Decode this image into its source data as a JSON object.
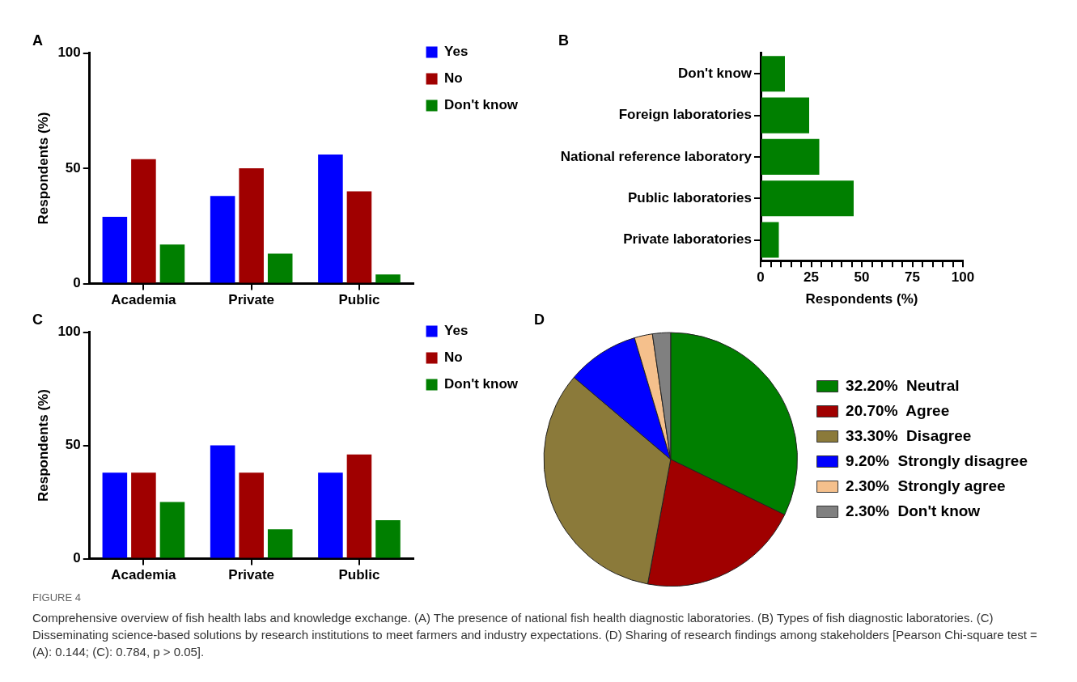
{
  "chart_data": [
    {
      "type": "bar",
      "title": "A",
      "ylabel": "Respondents (%)",
      "categories": [
        "Academia",
        "Private",
        "Public"
      ],
      "series": [
        {
          "name": "Yes",
          "color": "#0000ff",
          "values": [
            29,
            38,
            56
          ]
        },
        {
          "name": "No",
          "color": "#a00000",
          "values": [
            54,
            50,
            40
          ]
        },
        {
          "name": "Don't know",
          "color": "#007f00",
          "values": [
            17,
            13,
            4
          ]
        }
      ],
      "ylim": [
        0,
        100
      ],
      "yticks": [
        0,
        50,
        100
      ],
      "grid": false,
      "legend": "top right"
    },
    {
      "type": "bar",
      "title": "B",
      "orientation": "horizontal",
      "xlabel": "Respondents (%)",
      "categories": [
        "Don't know",
        "Foreign laboratories",
        "National reference laboratory",
        "Public laboratories",
        "Private laboratories"
      ],
      "values": [
        12,
        24,
        29,
        46,
        9
      ],
      "color": "#007f00",
      "xlim": [
        0,
        100
      ],
      "xticks": [
        0,
        {
          "value": 5,
          "label": null
        },
        {
          "value": 10,
          "label": null
        },
        {
          "value": 15,
          "label": null
        },
        {
          "value": 20,
          "label": null
        },
        25,
        {
          "value": 30,
          "label": null
        },
        {
          "value": 35,
          "label": null
        },
        {
          "value": 40,
          "label": null
        },
        {
          "value": 45,
          "label": null
        },
        50,
        {
          "value": 55,
          "label": null
        },
        {
          "value": 60,
          "label": null
        },
        {
          "value": 65,
          "label": null
        },
        {
          "value": 70,
          "label": null
        },
        75,
        {
          "value": 80,
          "label": null
        },
        {
          "value": 85,
          "label": null
        },
        {
          "value": 90,
          "label": null
        },
        {
          "value": 95,
          "label": null
        },
        100
      ],
      "grid": false,
      "legend": false
    },
    {
      "type": "bar",
      "title": "C",
      "ylabel": "Respondents (%)",
      "categories": [
        "Academia",
        "Private",
        "Public"
      ],
      "series": [
        {
          "name": "Yes",
          "color": "#0000ff",
          "values": [
            38,
            50,
            38
          ]
        },
        {
          "name": "No",
          "color": "#a00000",
          "values": [
            38,
            38,
            46
          ]
        },
        {
          "name": "Don't know",
          "color": "#007f00",
          "values": [
            25,
            13,
            17
          ]
        }
      ],
      "ylim": [
        0,
        100
      ],
      "yticks": [
        0,
        50,
        100
      ],
      "grid": false,
      "legend": "top right"
    },
    {
      "type": "pie",
      "title": "D",
      "categories": [
        "Neutral",
        "Agree",
        "Disagree",
        "Strongly disagree",
        "Strongly agree",
        "Don't know"
      ],
      "values": [
        32.2,
        20.7,
        33.3,
        9.2,
        2.3,
        2.3
      ],
      "value_labels": [
        "32.20%",
        "20.70%",
        "33.30%",
        "9.20%",
        "2.30%",
        "2.30%"
      ],
      "colors": [
        "#007f00",
        "#a00000",
        "#8b7a3a",
        "#0000ff",
        "#f5c08c",
        "#808080"
      ],
      "legend": "right",
      "annotations": [
        "FIGURE 4",
        "Comprehensive overview of fish health labs and knowledge exchange. (A) The presence of national fish health diagnostic laboratories. (B) Types of fish diagnostic laboratories. (C) Disseminating science-based solutions by research institutions to meet farmers and industry expectations. (D) Sharing of research findings among stakeholders [Pearson Chi-square test = (A): 0.144; (C): 0.784, p > 0.05]."
      ]
    }
  ]
}
